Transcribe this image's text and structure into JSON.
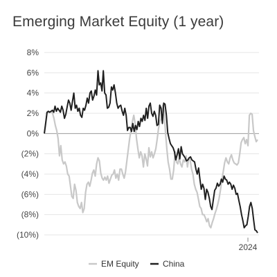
{
  "chart_data": {
    "type": "line",
    "title": "Emerging Market Equity (1 year)",
    "y_ticks": [
      "8%",
      "6%",
      "4%",
      "2%",
      "0%",
      "(2%)",
      "(4%)",
      "(6%)",
      "(8%)",
      "(10%)"
    ],
    "ylim": [
      -10,
      8
    ],
    "x_tick_labels": [
      "2024"
    ],
    "grid": true,
    "legend_position": "bottom-center",
    "series": [
      {
        "name": "EM Equity",
        "color": "#c8c8c8",
        "values": [
          0.0,
          1.0,
          2.0,
          2.1,
          2.1,
          2.2,
          2.0,
          1.5,
          0.8,
          0.3,
          -0.5,
          -2.2,
          -1.2,
          -2.6,
          -3.0,
          -2.8,
          -3.2,
          -4.0,
          -4.2,
          -5.2,
          -6.2,
          -6.4,
          -5.0,
          -5.6,
          -6.8,
          -7.2,
          -7.4,
          -6.8,
          -7.8,
          -7.4,
          -5.8,
          -5.0,
          -4.8,
          -5.2,
          -4.6,
          -3.9,
          -3.6,
          -4.2,
          -3.0,
          -2.4,
          -2.7,
          -3.9,
          -4.4,
          -4.6,
          -4.3,
          -4.6,
          -4.2,
          -4.9,
          -4.5,
          -4.1,
          -4.0,
          -3.6,
          -4.4,
          -4.0,
          -4.6,
          -3.5,
          -3.5,
          -4.0,
          -4.4,
          -3.8,
          -2.7,
          -1.6,
          -0.5,
          0.3,
          1.2,
          1.8,
          1.0,
          -0.5,
          -1.5,
          -2.4,
          -1.8,
          -2.2,
          -3.3,
          -2.0,
          -2.5,
          -3.2,
          -1.4,
          -2.3,
          -1.8,
          -2.4,
          -2.0,
          -1.5,
          -0.6,
          0.5,
          1.2,
          1.5,
          2.8,
          2.2,
          0.2,
          -1.5,
          -2.8,
          -3.5,
          -4.5,
          -4.5,
          -3.6,
          -1.8,
          -2.8,
          -3.0,
          -2.4,
          -3.0,
          -3.3,
          -2.6,
          -2.8,
          -2.2,
          -3.3,
          -2.4,
          -2.6,
          -3.5,
          -4.0,
          -5.0,
          -5.5,
          -5.8,
          -6.5,
          -7.2,
          -7.4,
          -8.0,
          -8.0,
          -8.3,
          -8.7,
          -8.4,
          -9.1,
          -9.3,
          -8.8,
          -8.4,
          -7.9,
          -7.5,
          -7.0,
          -6.4,
          -5.6,
          -4.6,
          -3.8,
          -2.9,
          -2.4,
          -2.8,
          -3.0,
          -2.4,
          -2.1,
          -2.6,
          -2.9,
          -3.0,
          -3.1,
          -2.9,
          -2.0,
          -0.9,
          -0.6,
          -0.4,
          -1.0,
          -0.6,
          -1.2,
          1.8,
          2.0,
          1.9,
          0.3,
          -0.3,
          -0.8,
          -0.6
        ],
        "x_range": "one year of observations, year 2024 marked near the right end"
      },
      {
        "name": "China",
        "color": "#1f1f1f",
        "values": [
          0.0,
          1.0,
          2.1,
          2.2,
          2.1,
          2.2,
          2.3,
          2.1,
          2.7,
          2.2,
          2.5,
          2.3,
          2.1,
          2.7,
          2.3,
          1.5,
          1.9,
          2.6,
          3.3,
          3.0,
          2.3,
          3.2,
          4.0,
          2.5,
          2.8,
          2.2,
          2.5,
          1.8,
          1.6,
          2.5,
          2.3,
          2.8,
          3.5,
          3.0,
          4.0,
          4.2,
          3.3,
          3.7,
          4.3,
          3.8,
          6.2,
          4.8,
          5.0,
          4.2,
          6.2,
          4.0,
          3.8,
          2.5,
          2.6,
          3.0,
          4.6,
          4.3,
          4.8,
          4.0,
          3.0,
          2.5,
          2.7,
          2.8,
          2.2,
          1.8,
          2.5,
          1.8,
          0.3,
          0.6,
          0.6,
          0.2,
          1.0,
          0.2,
          0.8,
          0.4,
          1.2,
          0.7,
          1.5,
          1.2,
          1.8,
          1.3,
          2.5,
          1.5,
          2.7,
          3.0,
          2.0,
          1.7,
          2.2,
          1.8,
          0.8,
          0.9,
          2.8,
          2.5,
          1.0,
          3.0,
          2.9,
          1.8,
          0.1,
          -0.5,
          -1.0,
          -1.2,
          -1.4,
          -1.8,
          -2.6,
          -2.1,
          -1.5,
          -2.5,
          -1.3,
          -2.0,
          -2.2,
          -2.4,
          -2.7,
          -2.6,
          -2.4,
          -2.3,
          -2.6,
          -2.7,
          -2.8,
          -3.5,
          -4.0,
          -3.4,
          -4.5,
          -5.5,
          -5.0,
          -5.4,
          -6.5,
          -5.5,
          -5.8,
          -6.4,
          -7.2,
          -7.5,
          -6.5,
          -5.6,
          -5.4,
          -4.9,
          -5.2,
          -5.0,
          -4.5,
          -4.8,
          -4.2,
          -4.5,
          -4.6,
          -5.0,
          -4.8,
          -5.0,
          -5.5,
          -5.1,
          -5.4,
          -6.0,
          -5.9,
          -6.6,
          -7.2,
          -8.0,
          -8.6,
          -9.3,
          -9.1,
          -9.0,
          -8.2,
          -7.2,
          -6.8,
          -7.4,
          -8.5,
          -9.5,
          -9.6,
          -9.8
        ],
        "x_range": "one year of observations, year 2024 marked near the right end"
      }
    ]
  }
}
